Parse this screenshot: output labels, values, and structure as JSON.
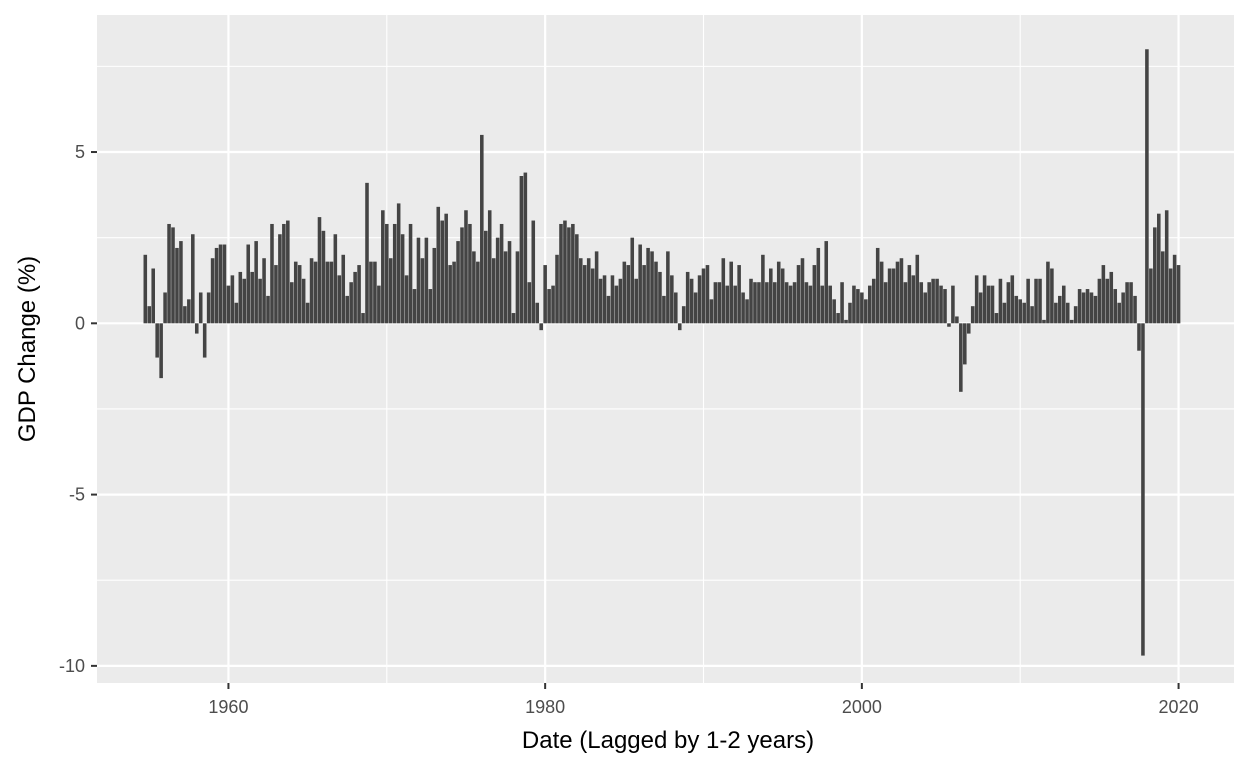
{
  "chart_data": {
    "type": "bar",
    "title": "",
    "xlabel": "Date (Lagged by 1-2 years)",
    "ylabel": "GDP Change (%)",
    "xlim": [
      1951.7,
      2023.5
    ],
    "ylim": [
      -10.5,
      9.0
    ],
    "x_ticks": [
      1960,
      1980,
      2000,
      2020
    ],
    "x_tick_labels": [
      "1960",
      "1980",
      "2000",
      "2020"
    ],
    "y_ticks": [
      -10,
      -5,
      0,
      5
    ],
    "y_tick_labels": [
      "-10",
      "-5",
      "0",
      "5"
    ],
    "grid": true,
    "legend": "none",
    "x_start": 1954.75,
    "x_step": 0.25,
    "values": [
      2.0,
      0.5,
      1.6,
      -1.0,
      -1.6,
      0.9,
      2.9,
      2.8,
      2.2,
      2.4,
      0.5,
      0.7,
      2.6,
      -0.3,
      0.9,
      -1.0,
      0.9,
      1.9,
      2.2,
      2.3,
      2.3,
      1.1,
      1.4,
      0.6,
      1.5,
      1.3,
      2.3,
      1.5,
      2.4,
      1.3,
      1.9,
      0.8,
      2.9,
      1.7,
      2.6,
      2.9,
      3.0,
      1.2,
      1.8,
      1.7,
      1.3,
      0.6,
      1.9,
      1.8,
      3.1,
      2.7,
      1.8,
      1.8,
      2.6,
      1.4,
      2.0,
      0.8,
      1.2,
      1.5,
      1.7,
      0.3,
      4.1,
      1.8,
      1.8,
      1.1,
      3.3,
      2.9,
      1.9,
      2.9,
      3.5,
      2.6,
      1.4,
      2.9,
      1.0,
      2.5,
      1.9,
      2.5,
      1.0,
      2.2,
      3.4,
      3.0,
      3.2,
      1.7,
      1.8,
      2.4,
      2.8,
      3.3,
      2.9,
      2.1,
      1.8,
      5.5,
      2.7,
      3.3,
      1.9,
      2.5,
      2.9,
      2.1,
      2.4,
      0.3,
      2.1,
      4.3,
      4.4,
      1.2,
      3.0,
      0.6,
      -0.2,
      1.7,
      1.0,
      1.1,
      2.0,
      2.9,
      3.0,
      2.8,
      2.9,
      2.6,
      1.9,
      1.7,
      1.9,
      1.6,
      2.1,
      1.3,
      1.4,
      0.8,
      1.4,
      1.1,
      1.3,
      1.8,
      1.7,
      2.5,
      1.3,
      2.3,
      1.7,
      2.2,
      2.1,
      1.8,
      1.5,
      0.8,
      2.1,
      1.4,
      0.9,
      -0.2,
      0.5,
      1.5,
      1.3,
      0.9,
      1.4,
      1.6,
      1.7,
      0.7,
      1.2,
      1.2,
      1.9,
      1.1,
      1.8,
      1.1,
      1.7,
      0.9,
      0.7,
      1.3,
      1.2,
      1.2,
      2.0,
      1.2,
      1.6,
      1.2,
      1.8,
      1.6,
      1.2,
      1.1,
      1.2,
      1.7,
      1.9,
      1.2,
      1.1,
      1.7,
      2.2,
      1.1,
      2.4,
      1.1,
      0.7,
      0.3,
      1.2,
      0.1,
      0.6,
      1.1,
      1.0,
      0.9,
      0.7,
      1.1,
      1.3,
      2.2,
      1.8,
      1.2,
      1.6,
      1.6,
      1.8,
      1.9,
      1.2,
      1.7,
      1.4,
      2.0,
      1.2,
      0.9,
      1.2,
      1.3,
      1.3,
      1.1,
      1.0,
      -0.1,
      1.1,
      0.2,
      -2.0,
      -1.2,
      -0.3,
      0.5,
      1.4,
      0.9,
      1.4,
      1.1,
      1.1,
      0.3,
      1.3,
      0.6,
      1.2,
      1.4,
      0.8,
      0.7,
      0.6,
      1.3,
      0.5,
      1.3,
      1.3,
      0.1,
      1.8,
      1.6,
      0.6,
      0.8,
      1.1,
      0.6,
      0.1,
      0.5,
      1.0,
      0.9,
      1.0,
      0.9,
      0.8,
      1.3,
      1.7,
      1.3,
      1.5,
      1.0,
      0.6,
      0.9,
      1.2,
      1.2,
      0.8,
      -0.8,
      -9.7,
      8.0,
      1.6,
      2.8,
      3.2,
      2.1,
      3.3,
      1.6,
      2.0,
      1.7
    ]
  }
}
